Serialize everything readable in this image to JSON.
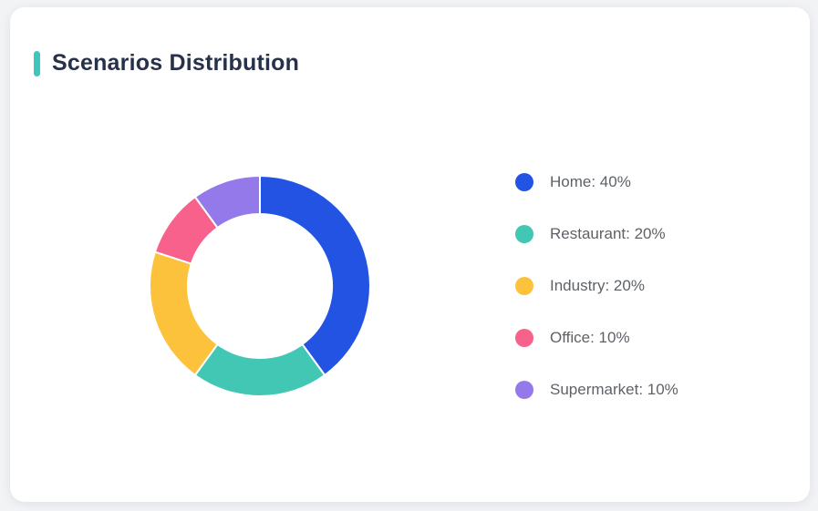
{
  "page": {
    "background_color": "#F2F3F5"
  },
  "card": {
    "background_color": "#FFFFFF"
  },
  "header": {
    "title": "Scenarios Distribution",
    "accent_color": "#3EC6BC"
  },
  "chart_data": {
    "type": "pie",
    "variant": "donut",
    "title": "Scenarios Distribution",
    "unit": "%",
    "start_angle_deg": 0,
    "direction": "clockwise",
    "inner_radius_ratio": 0.65,
    "outer_radius_px": 121,
    "inner_radius_px": 79,
    "slice_border_color": "#FFFFFF",
    "slice_border_width": 2,
    "legend_position": "right",
    "legend_label_format": "{name}: {value}%",
    "series": [
      {
        "name": "Home",
        "value": 40,
        "color": "#2253E2"
      },
      {
        "name": "Restaurant",
        "value": 20,
        "color": "#41C7B4"
      },
      {
        "name": "Industry",
        "value": 20,
        "color": "#FCC23C"
      },
      {
        "name": "Office",
        "value": 10,
        "color": "#F8618C"
      },
      {
        "name": "Supermarket",
        "value": 10,
        "color": "#9379E9"
      }
    ]
  }
}
